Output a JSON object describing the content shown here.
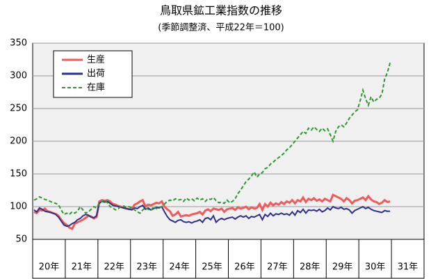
{
  "chart_data": {
    "type": "line",
    "title": "鳥取県鉱工業指数の推移",
    "subtitle": "(季節調整済、平成22年＝100)",
    "categories": [
      null,
      null,
      null,
      null,
      null,
      null,
      "20年",
      null,
      null,
      null,
      null,
      null,
      null,
      null,
      null,
      null,
      null,
      null,
      "21年",
      null,
      null,
      null,
      null,
      null,
      null,
      null,
      null,
      null,
      null,
      null,
      "22年",
      null,
      null,
      null,
      null,
      null,
      null,
      null,
      null,
      null,
      null,
      null,
      "23年",
      null,
      null,
      null,
      null,
      null,
      null,
      null,
      null,
      null,
      null,
      null,
      "24年",
      null,
      null,
      null,
      null,
      null,
      null,
      null,
      null,
      null,
      null,
      null,
      "25年",
      null,
      null,
      null,
      null,
      null,
      null,
      null,
      null,
      null,
      null,
      null,
      "26年",
      null,
      null,
      null,
      null,
      null,
      null,
      null,
      null,
      null,
      null,
      null,
      "27年",
      null,
      null,
      null,
      null,
      null,
      null,
      null,
      null,
      null,
      null,
      null,
      "28年",
      null,
      null,
      null,
      null,
      null,
      null,
      null,
      null,
      null,
      null,
      null,
      "29年",
      null,
      null,
      null,
      null,
      null,
      null,
      null,
      null,
      null,
      null,
      null,
      "30年",
      null,
      null,
      null,
      null,
      null,
      null,
      null,
      null,
      null,
      null,
      null,
      "31年",
      null,
      null,
      null,
      null,
      null
    ],
    "series": [
      {
        "name": "生産",
        "color": "#f05a5a",
        "style": "solid",
        "values": [
          92,
          90,
          95,
          94,
          97,
          93,
          92,
          90,
          89,
          86,
          80,
          75,
          72,
          68,
          66,
          74,
          76,
          78,
          80,
          83,
          86,
          85,
          82,
          84,
          108,
          110,
          109,
          110,
          108,
          104,
          103,
          101,
          100,
          98,
          97,
          96,
          97,
          103,
          105,
          108,
          110,
          100,
          103,
          102,
          104,
          106,
          105,
          108,
          100,
          96,
          93,
          86,
          88,
          92,
          85,
          86,
          87,
          86,
          88,
          89,
          90,
          92,
          88,
          94,
          96,
          93,
          97,
          96,
          95,
          97,
          92,
          96,
          97,
          98,
          95,
          99,
          97,
          98,
          100,
          96,
          99,
          97,
          98,
          104,
          95,
          104,
          100,
          106,
          102,
          105,
          103,
          107,
          104,
          108,
          106,
          110,
          105,
          110,
          108,
          114,
          107,
          112,
          110,
          113,
          109,
          111,
          108,
          112,
          110,
          108,
          118,
          116,
          114,
          112,
          108,
          113,
          110,
          105,
          109,
          110,
          112,
          114,
          110,
          116,
          111,
          108,
          107,
          104,
          106,
          110,
          107,
          108,
          null,
          null,
          null,
          null,
          null,
          null,
          null,
          null,
          null,
          null,
          null,
          null
        ]
      },
      {
        "name": "出荷",
        "color": "#2e2e8c",
        "style": "solid",
        "values": [
          95,
          92,
          98,
          96,
          93,
          92,
          91,
          90,
          88,
          84,
          78,
          72,
          70,
          71,
          74,
          76,
          80,
          82,
          86,
          88,
          87,
          84,
          83,
          86,
          105,
          108,
          107,
          108,
          105,
          102,
          101,
          100,
          99,
          98,
          97,
          96,
          95,
          98,
          97,
          100,
          102,
          96,
          98,
          95,
          97,
          99,
          98,
          100,
          92,
          85,
          80,
          78,
          76,
          79,
          80,
          77,
          76,
          77,
          75,
          77,
          78,
          80,
          76,
          82,
          83,
          80,
          86,
          76,
          80,
          82,
          80,
          82,
          83,
          84,
          81,
          84,
          86,
          84,
          86,
          82,
          85,
          84,
          86,
          88,
          80,
          88,
          85,
          90,
          86,
          89,
          88,
          90,
          88,
          89,
          87,
          92,
          87,
          94,
          91,
          96,
          90,
          95,
          94,
          95,
          93,
          96,
          92,
          94,
          98,
          95,
          100,
          98,
          97,
          99,
          96,
          97,
          95,
          90,
          94,
          96,
          98,
          100,
          97,
          99,
          96,
          94,
          93,
          92,
          91,
          94,
          93,
          93,
          null,
          null,
          null,
          null,
          null,
          null,
          null,
          null,
          null,
          null,
          null,
          null
        ]
      },
      {
        "name": "在庫",
        "color": "#2a9a2a",
        "style": "dashed",
        "values": [
          110,
          112,
          115,
          113,
          111,
          110,
          108,
          106,
          105,
          103,
          95,
          88,
          90,
          88,
          92,
          90,
          93,
          100,
          95,
          90,
          92,
          96,
          100,
          98,
          105,
          108,
          110,
          106,
          100,
          98,
          95,
          97,
          100,
          101,
          99,
          100,
          98,
          95,
          92,
          90,
          95,
          98,
          96,
          94,
          100,
          97,
          99,
          100,
          104,
          108,
          110,
          109,
          112,
          110,
          111,
          108,
          113,
          110,
          112,
          109,
          113,
          110,
          112,
          108,
          112,
          111,
          114,
          109,
          106,
          107,
          105,
          110,
          106,
          108,
          112,
          120,
          125,
          132,
          138,
          142,
          147,
          153,
          145,
          150,
          152,
          158,
          160,
          165,
          168,
          172,
          175,
          178,
          182,
          187,
          190,
          195,
          200,
          205,
          210,
          215,
          212,
          220,
          217,
          222,
          218,
          215,
          220,
          216,
          219,
          210,
          200,
          215,
          222,
          225,
          222,
          228,
          235,
          240,
          245,
          248,
          262,
          278,
          265,
          255,
          268,
          260,
          264,
          266,
          272,
          295,
          305,
          320,
          null,
          null,
          null,
          null,
          null,
          null,
          null,
          null,
          null,
          null,
          null,
          null
        ]
      }
    ],
    "ylim": [
      50,
      350
    ],
    "yticks": [
      50,
      100,
      150,
      200,
      250,
      300,
      350
    ],
    "grid": true,
    "legend": "upper left"
  }
}
